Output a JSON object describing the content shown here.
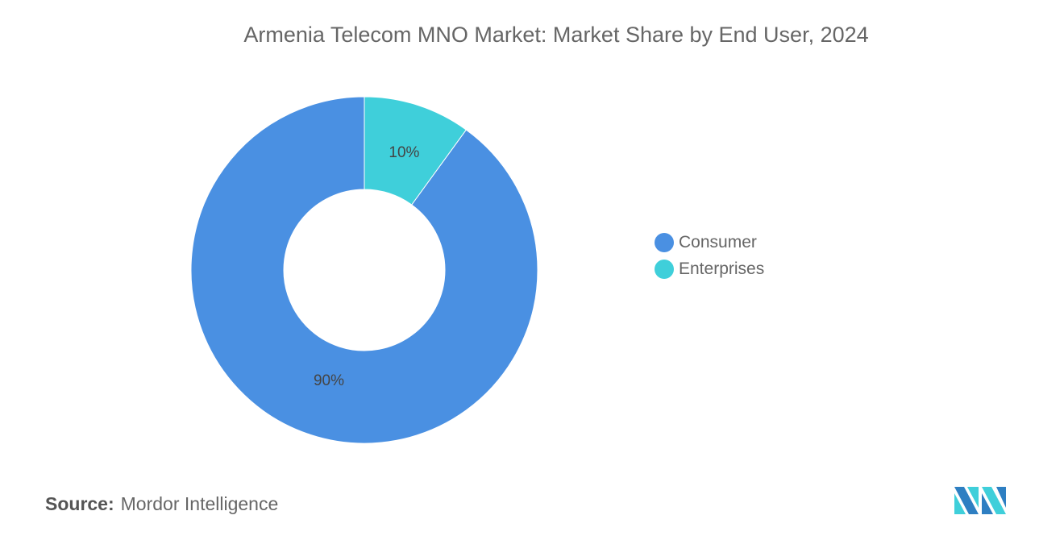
{
  "chart_data": {
    "type": "pie",
    "title": "Armenia Telecom MNO Market: Market Share by End User, 2024",
    "donut": true,
    "slices": [
      {
        "name": "Enterprises",
        "value": 10,
        "label": "10%",
        "color": "#3FCFDA"
      },
      {
        "name": "Consumer",
        "value": 90,
        "label": "90%",
        "color": "#4A90E2"
      }
    ],
    "legend_placement": "right",
    "legend": [
      "Consumer",
      "Enterprises"
    ]
  },
  "source": {
    "label": "Source:",
    "value": "Mordor Intelligence"
  },
  "logo": {
    "text": "Mordor Intelligence"
  }
}
